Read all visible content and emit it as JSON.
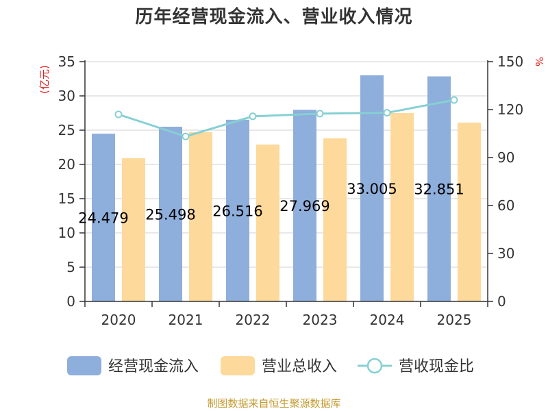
{
  "chart_data": {
    "type": "bar",
    "title": "历年经营现金流入、营业收入情况",
    "categories": [
      "2020",
      "2021",
      "2022",
      "2023",
      "2024",
      "2025"
    ],
    "left_axis": {
      "unit": "(亿元)",
      "ylim": [
        0,
        35
      ],
      "ticks": [
        0,
        5,
        10,
        15,
        20,
        25,
        30,
        35
      ]
    },
    "right_axis": {
      "unit": "%",
      "ylim": [
        0,
        150
      ],
      "ticks": [
        0,
        30,
        60,
        90,
        120,
        150
      ]
    },
    "series": [
      {
        "name": "经营现金流入",
        "type": "bar",
        "axis": "left",
        "color": "#8eaedb",
        "values": [
          24.479,
          25.498,
          26.516,
          27.969,
          33.005,
          32.851
        ],
        "data_labels": [
          "24.479",
          "25.498",
          "26.516",
          "27.969",
          "33.005",
          "32.851"
        ]
      },
      {
        "name": "营业总收入",
        "type": "bar",
        "axis": "left",
        "color": "#fdd99b",
        "values": [
          20.9,
          24.7,
          22.9,
          23.8,
          27.5,
          26.1
        ]
      },
      {
        "name": "营收现金比",
        "type": "line",
        "axis": "right",
        "color": "#86d0d3",
        "values": [
          117.0,
          103.2,
          115.8,
          117.5,
          118.0,
          126.0
        ]
      }
    ],
    "grid": true,
    "legend_position": "bottom"
  },
  "source": "制图数据来自恒生聚源数据库"
}
